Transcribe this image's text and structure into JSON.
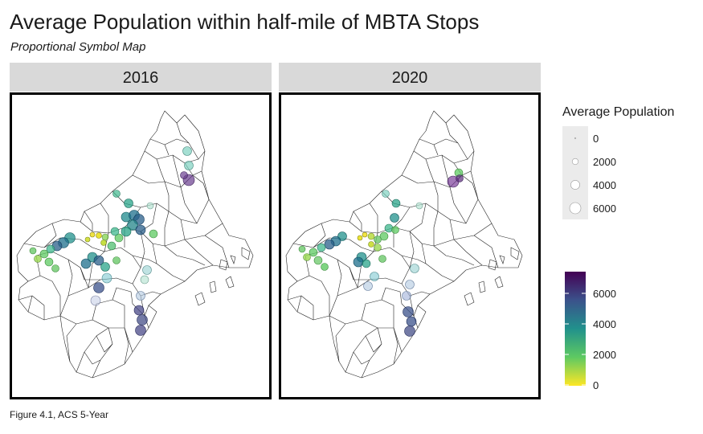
{
  "title": "Average Population within half-mile of MBTA Stops",
  "subtitle": "Proportional Symbol Map",
  "caption": "Figure 4.1, ACS 5-Year",
  "panels": [
    {
      "label": "2016"
    },
    {
      "label": "2020"
    }
  ],
  "legend": {
    "size_title": "Average Population",
    "size_breaks": [
      "0",
      "2000",
      "4000",
      "6000"
    ],
    "color_breaks": [
      "0",
      "2000",
      "4000",
      "6000"
    ],
    "color_scale": "viridis (reversed)",
    "color_range": [
      0,
      7200
    ],
    "colors": [
      "#fde725",
      "#5ec962",
      "#21918c",
      "#3b528b",
      "#440154"
    ]
  },
  "map_data": {
    "type": "proportional-symbol-map",
    "variable": "Average Population",
    "note": "symbol values estimated from color and size"
  }
}
